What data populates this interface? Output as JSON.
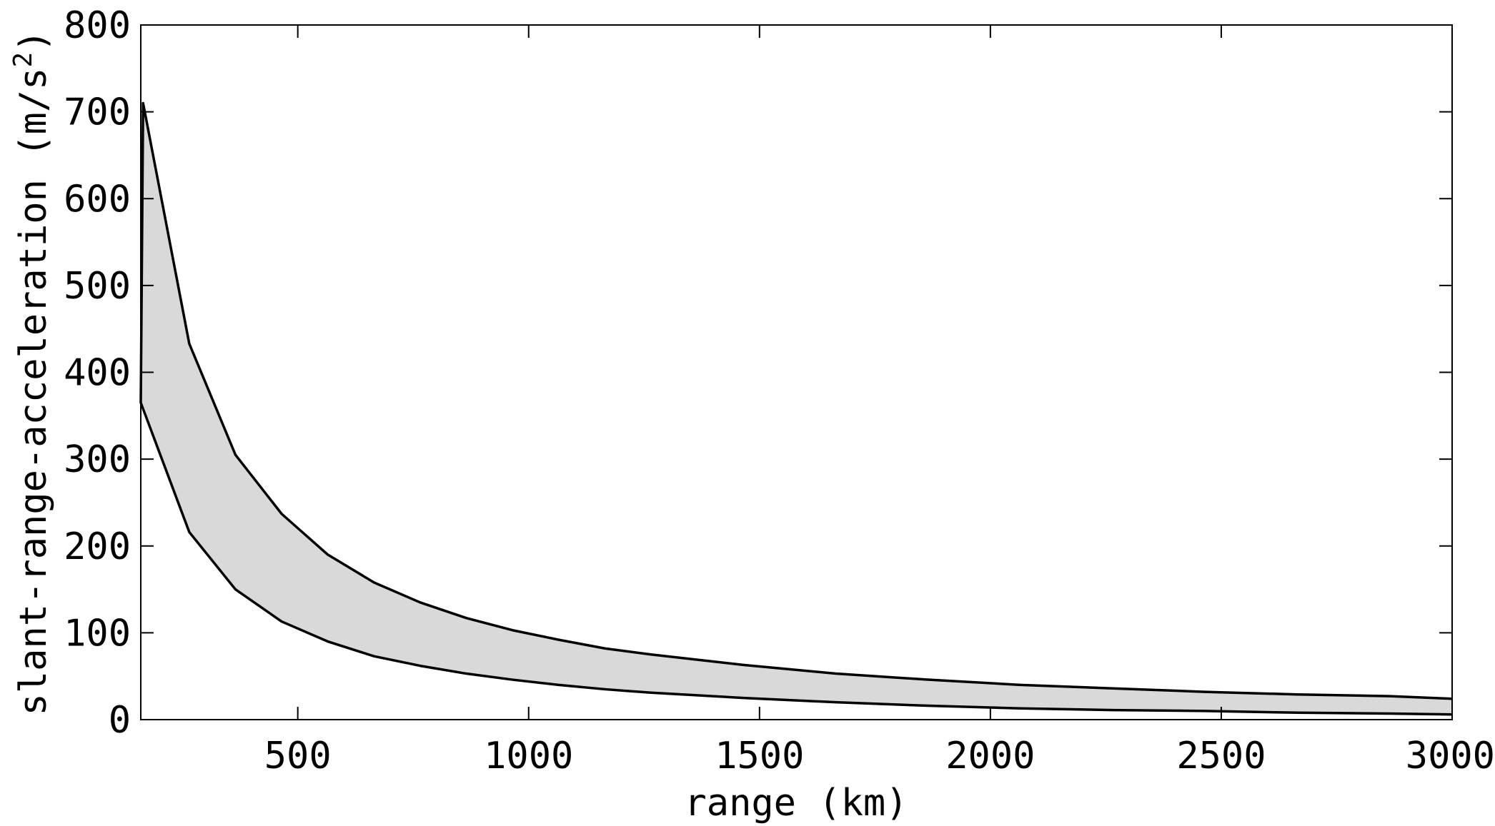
{
  "chart_data": {
    "type": "area",
    "xlabel": "range (km)",
    "ylabel": "slant-range-acceleration (m/s²)",
    "ylabel_parts": {
      "before": "slant-range-acceleration (m/s",
      "sup": "2",
      "after": ")"
    },
    "xlim": [
      160,
      3000
    ],
    "ylim": [
      0,
      800
    ],
    "xticks": [
      500,
      1000,
      1500,
      2000,
      2500,
      3000
    ],
    "yticks": [
      0,
      100,
      200,
      300,
      400,
      500,
      600,
      700,
      800
    ],
    "grid": false,
    "legend": "none",
    "band_color": "#d9d9d9",
    "line_color": "#000000",
    "series": [
      {
        "x": [
          165,
          265,
          365,
          465,
          565,
          665,
          765,
          865,
          965,
          1065,
          1165,
          1265,
          1465,
          1665,
          1865,
          2065,
          2265,
          2465,
          2665,
          2865,
          3000
        ],
        "values": [
          710,
          433,
          305,
          237,
          190,
          158,
          135,
          117,
          103,
          92,
          82,
          75,
          63,
          53,
          46,
          40,
          36,
          32,
          29,
          27,
          24
        ]
      },
      {
        "x": [
          160,
          265,
          365,
          465,
          565,
          665,
          765,
          865,
          965,
          1065,
          1165,
          1265,
          1465,
          1665,
          1865,
          2065,
          2265,
          2465,
          2665,
          2865,
          3000
        ],
        "values": [
          365,
          216,
          150,
          113,
          90,
          73,
          62,
          53,
          46,
          40,
          35,
          31,
          25,
          20,
          16,
          13,
          11,
          10,
          8,
          7,
          6
        ]
      }
    ]
  }
}
